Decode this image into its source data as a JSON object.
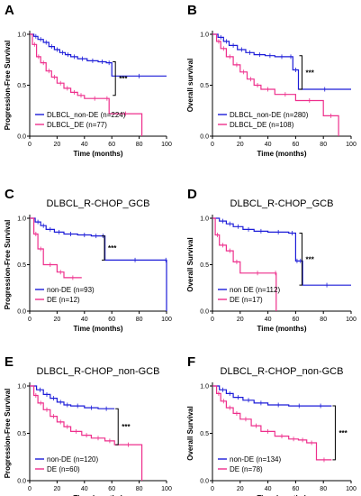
{
  "colors": {
    "nonde": "#1c1cd8",
    "de": "#ee2f8c",
    "axis": "#000000"
  },
  "chart_data": [
    {
      "panel": "A",
      "type": "line",
      "title": "",
      "xlabel": "Time (months)",
      "ylabel": "Progression-Free Survival",
      "xlim": [
        0,
        100
      ],
      "ylim": [
        0,
        1.0
      ],
      "xticks": [
        "0",
        "20",
        "40",
        "60",
        "80",
        "100"
      ],
      "yticks": [
        "0.0",
        "0.5",
        "1.0"
      ],
      "legend_position": "bottom-left",
      "significance": "***",
      "series": [
        {
          "name": "DLBCL_non-DE (n=224)",
          "x": [
            0,
            3,
            6,
            10,
            14,
            18,
            22,
            26,
            30,
            35,
            42,
            50,
            56,
            60,
            100
          ],
          "y": [
            1.0,
            0.98,
            0.95,
            0.92,
            0.88,
            0.85,
            0.82,
            0.8,
            0.78,
            0.76,
            0.74,
            0.73,
            0.72,
            0.59,
            0.59
          ]
        },
        {
          "name": "DLBCL_DE (n=77)",
          "x": [
            0,
            2,
            5,
            8,
            12,
            16,
            20,
            25,
            30,
            35,
            40,
            55,
            58,
            82
          ],
          "y": [
            1.0,
            0.9,
            0.78,
            0.72,
            0.64,
            0.58,
            0.52,
            0.47,
            0.43,
            0.4,
            0.37,
            0.37,
            0.22,
            0.0
          ]
        }
      ]
    },
    {
      "panel": "B",
      "type": "line",
      "title": "",
      "xlabel": "Time (months)",
      "ylabel": "Overall survival",
      "xlim": [
        0,
        100
      ],
      "ylim": [
        0,
        1.0
      ],
      "xticks": [
        "0",
        "20",
        "40",
        "60",
        "80",
        "100"
      ],
      "yticks": [
        "0.0",
        "0.5",
        "1.0"
      ],
      "legend_position": "bottom-left",
      "significance": "***",
      "series": [
        {
          "name": "DLBCL_non-DE (n=280)",
          "x": [
            0,
            4,
            8,
            12,
            18,
            24,
            30,
            38,
            45,
            55,
            58,
            62,
            100
          ],
          "y": [
            1.0,
            0.97,
            0.93,
            0.89,
            0.85,
            0.82,
            0.8,
            0.79,
            0.78,
            0.78,
            0.65,
            0.46,
            0.46
          ]
        },
        {
          "name": "DLBCL_DE (n=108)",
          "x": [
            0,
            3,
            6,
            10,
            15,
            20,
            25,
            30,
            35,
            45,
            60,
            80,
            91
          ],
          "y": [
            1.0,
            0.93,
            0.86,
            0.78,
            0.7,
            0.63,
            0.56,
            0.5,
            0.46,
            0.41,
            0.35,
            0.2,
            0.0
          ]
        }
      ]
    },
    {
      "panel": "C",
      "type": "line",
      "title": "DLBCL_R-CHOP_GCB",
      "xlabel": "Time (months)",
      "ylabel": "Progression-Free Survival",
      "xlim": [
        0,
        100
      ],
      "ylim": [
        0,
        1.0
      ],
      "xticks": [
        "0",
        "20",
        "40",
        "60",
        "80",
        "100"
      ],
      "yticks": [
        "0.0",
        "0.5",
        "1.0"
      ],
      "legend_position": "bottom-left",
      "significance": "***",
      "series": [
        {
          "name": "non-DE (n=93)",
          "x": [
            0,
            4,
            8,
            12,
            18,
            25,
            35,
            45,
            52,
            55,
            99,
            100
          ],
          "y": [
            1.0,
            0.96,
            0.92,
            0.88,
            0.85,
            0.83,
            0.82,
            0.81,
            0.81,
            0.55,
            0.55,
            0.0
          ]
        },
        {
          "name": "DE (n=12)",
          "x": [
            0,
            3,
            6,
            10,
            20,
            25,
            38
          ],
          "y": [
            1.0,
            0.83,
            0.67,
            0.5,
            0.42,
            0.36,
            0.36
          ]
        }
      ]
    },
    {
      "panel": "D",
      "type": "line",
      "title": "DLBCL_R-CHOP_GCB",
      "xlabel": "Time (months)",
      "ylabel": "Overall Survival",
      "xlim": [
        0,
        100
      ],
      "ylim": [
        0,
        1.0
      ],
      "xticks": [
        "0",
        "20",
        "40",
        "60",
        "80",
        "100"
      ],
      "yticks": [
        "0.0",
        "0.5",
        "1.0"
      ],
      "legend_position": "bottom-left",
      "significance": "***",
      "series": [
        {
          "name": "non DE (n=112)",
          "x": [
            0,
            5,
            10,
            15,
            22,
            30,
            40,
            55,
            60,
            62,
            65,
            100
          ],
          "y": [
            1.0,
            0.97,
            0.94,
            0.91,
            0.88,
            0.86,
            0.85,
            0.84,
            0.54,
            0.54,
            0.28,
            0.28
          ]
        },
        {
          "name": "DE (n=17)",
          "x": [
            0,
            2,
            5,
            10,
            15,
            20,
            45,
            46
          ],
          "y": [
            1.0,
            0.82,
            0.71,
            0.65,
            0.53,
            0.41,
            0.41,
            0.0
          ]
        }
      ]
    },
    {
      "panel": "E",
      "type": "line",
      "title": "DLBCL_R-CHOP_non-GCB",
      "xlabel": "Time (months)",
      "ylabel": "Progression-Free Survival",
      "xlim": [
        0,
        100
      ],
      "ylim": [
        0,
        1.0
      ],
      "xticks": [
        "0",
        "20",
        "40",
        "60",
        "80",
        "100"
      ],
      "yticks": [
        "0.0",
        "0.5",
        "1.0"
      ],
      "legend_position": "bottom-left",
      "significance": "***",
      "series": [
        {
          "name": "non-DE (n=120)",
          "x": [
            0,
            5,
            10,
            15,
            20,
            25,
            30,
            40,
            50,
            62
          ],
          "y": [
            1.0,
            0.96,
            0.91,
            0.87,
            0.83,
            0.8,
            0.79,
            0.77,
            0.76,
            0.76
          ]
        },
        {
          "name": "DE (n=60)",
          "x": [
            0,
            3,
            6,
            10,
            15,
            20,
            25,
            30,
            38,
            45,
            55,
            62,
            82
          ],
          "y": [
            1.0,
            0.9,
            0.82,
            0.75,
            0.68,
            0.62,
            0.57,
            0.52,
            0.48,
            0.45,
            0.42,
            0.38,
            0.0
          ]
        }
      ]
    },
    {
      "panel": "F",
      "type": "line",
      "title": "DLBCL_R-CHOP_non-GCB",
      "xlabel": "Time (months)",
      "ylabel": "Overall Survival",
      "xlim": [
        0,
        100
      ],
      "ylim": [
        0,
        1.0
      ],
      "xticks": [
        "0",
        "20",
        "40",
        "60",
        "80",
        "100"
      ],
      "yticks": [
        "0.0",
        "0.5",
        "1.0"
      ],
      "legend_position": "bottom-left",
      "significance": "***",
      "series": [
        {
          "name": "non-DE (n=134)",
          "x": [
            0,
            5,
            10,
            15,
            22,
            30,
            40,
            55,
            70,
            86
          ],
          "y": [
            1.0,
            0.96,
            0.92,
            0.88,
            0.85,
            0.82,
            0.8,
            0.79,
            0.79,
            0.79
          ]
        },
        {
          "name": "DE (n=78)",
          "x": [
            0,
            3,
            6,
            10,
            15,
            20,
            28,
            35,
            45,
            55,
            62,
            68,
            75,
            86
          ],
          "y": [
            1.0,
            0.92,
            0.84,
            0.77,
            0.71,
            0.65,
            0.58,
            0.52,
            0.47,
            0.44,
            0.43,
            0.4,
            0.22,
            0.22
          ]
        }
      ]
    }
  ]
}
